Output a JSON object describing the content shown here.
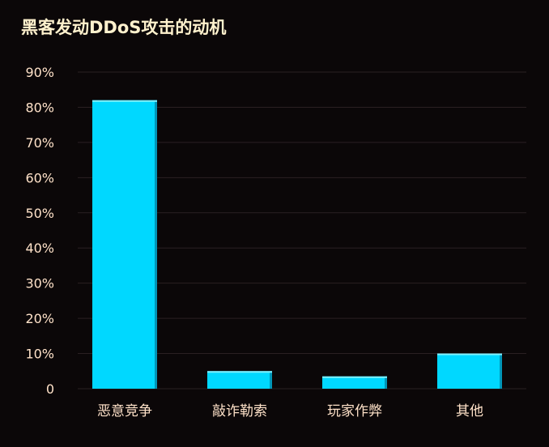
{
  "chart_data": {
    "type": "bar",
    "title": "黑客发动DDoS攻击的动机",
    "categories": [
      "恶意竞争",
      "敲诈勒索",
      "玩家作弊",
      "其他"
    ],
    "values": [
      82,
      5,
      3.5,
      10
    ],
    "yticks": [
      "0",
      "10%",
      "20%",
      "30%",
      "40%",
      "50%",
      "60%",
      "70%",
      "80%",
      "90%"
    ],
    "ylim": [
      0,
      90
    ],
    "grid": true,
    "legend": "none",
    "colors": {
      "bar": "#00d8ff",
      "bar_dark": "#0096b8",
      "gridline": "#2a2022",
      "text": "#ffe2c9",
      "title": "#fff1cd",
      "background": "#0b0708"
    }
  }
}
